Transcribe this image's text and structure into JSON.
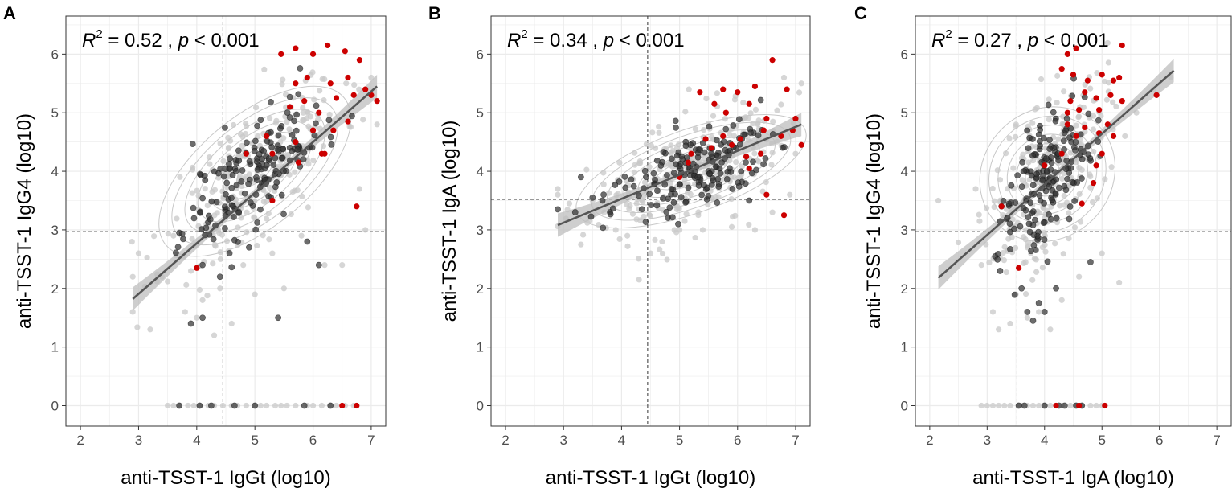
{
  "colors": {
    "grey_point": "#c8c8c8",
    "dark_point": "#333333",
    "red_point": "#cc0000",
    "fit_line": "#555555",
    "ci_band": "#bdbdbd",
    "contour": "#c8c8c8",
    "grid": "#ebebeb",
    "border": "#333333"
  },
  "chart_data": [
    {
      "panel": "A",
      "type": "scatter",
      "xlabel": "anti-TSST-1 IgGt (log10)",
      "ylabel": "anti-TSST-1 IgG4 (log10)",
      "xlim": [
        1.75,
        7.25
      ],
      "ylim": [
        -0.35,
        6.65
      ],
      "xticks": [
        2,
        3,
        4,
        5,
        6,
        7
      ],
      "yticks": [
        0,
        1,
        2,
        3,
        4,
        5,
        6
      ],
      "annotation": {
        "r2_label": "R",
        "r2_sup": "2",
        "r2_rest": " = 0.52 , ",
        "p_label": "p",
        "p_rest": " < 0.001"
      },
      "vline": 4.45,
      "hline": 2.97,
      "fit": {
        "x": [
          2.9,
          7.1
        ],
        "y": [
          1.82,
          5.45
        ]
      },
      "cloud": {
        "cx": 5.0,
        "cy": 4.0,
        "sx": 0.75,
        "sy": 0.85,
        "rho": 0.72,
        "n_grey": 260,
        "n_dark": 170,
        "seed": 11
      },
      "grey_points": [
        [
          2.9,
          2.2
        ],
        [
          2.9,
          1.6
        ],
        [
          3.0,
          2.6
        ],
        [
          3.2,
          1.3
        ],
        [
          3.4,
          2.2
        ],
        [
          3.6,
          2.9
        ],
        [
          3.8,
          1.6
        ],
        [
          3.9,
          2.3
        ],
        [
          4.0,
          1.5
        ],
        [
          4.1,
          1.8
        ],
        [
          4.3,
          1.2
        ],
        [
          4.4,
          2.0
        ],
        [
          4.6,
          1.4
        ],
        [
          4.8,
          2.4
        ],
        [
          5.0,
          1.9
        ],
        [
          5.3,
          2.6
        ],
        [
          5.5,
          2.0
        ],
        [
          5.8,
          2.9
        ],
        [
          6.2,
          2.4
        ],
        [
          6.5,
          2.4
        ],
        [
          6.9,
          3.0
        ],
        [
          6.8,
          3.7
        ],
        [
          7.1,
          4.8
        ],
        [
          7.0,
          5.6
        ]
      ],
      "dark_points": [
        [
          3.7,
          2.95
        ],
        [
          4.1,
          2.4
        ],
        [
          4.4,
          2.2
        ],
        [
          4.9,
          2.7
        ],
        [
          5.4,
          1.5
        ],
        [
          5.9,
          2.8
        ],
        [
          6.1,
          2.4
        ],
        [
          3.9,
          1.4
        ],
        [
          4.1,
          1.5
        ]
      ],
      "red_points": [
        [
          5.45,
          6.0
        ],
        [
          5.7,
          6.1
        ],
        [
          6.0,
          6.0
        ],
        [
          6.25,
          6.15
        ],
        [
          6.55,
          6.05
        ],
        [
          6.8,
          5.9
        ],
        [
          5.7,
          5.5
        ],
        [
          5.9,
          5.6
        ],
        [
          6.3,
          5.5
        ],
        [
          6.6,
          5.6
        ],
        [
          6.9,
          5.4
        ],
        [
          5.6,
          5.1
        ],
        [
          5.85,
          5.2
        ],
        [
          6.1,
          5.0
        ],
        [
          6.4,
          5.25
        ],
        [
          6.7,
          5.3
        ],
        [
          7.0,
          5.3
        ],
        [
          7.1,
          5.2
        ],
        [
          5.3,
          4.3
        ],
        [
          5.7,
          4.5
        ],
        [
          6.0,
          4.7
        ],
        [
          6.35,
          4.7
        ],
        [
          6.6,
          4.85
        ],
        [
          4.85,
          4.3
        ],
        [
          5.2,
          4.6
        ],
        [
          5.75,
          4.15
        ],
        [
          6.2,
          4.3
        ],
        [
          6.75,
          3.4
        ],
        [
          4.0,
          2.35
        ],
        [
          5.3,
          3.5
        ],
        [
          6.15,
          4.3
        ]
      ],
      "zero_row": {
        "grey": [
          3.5,
          3.6,
          3.7,
          3.85,
          3.95,
          4.05,
          4.2,
          4.3,
          4.45,
          4.6,
          4.7,
          4.85,
          5.0,
          5.1,
          5.2,
          5.35,
          5.45,
          5.55,
          5.7,
          5.9,
          6.0,
          6.15,
          6.3,
          6.4,
          6.55,
          6.7
        ],
        "dark": [
          3.7,
          4.05,
          4.25,
          4.65,
          5.0,
          5.85,
          6.3
        ],
        "red": [
          6.5,
          6.75
        ]
      }
    },
    {
      "panel": "B",
      "type": "scatter",
      "xlabel": "anti-TSST-1 IgGt (log10)",
      "ylabel": "anti-TSST-1 IgA (log10)",
      "xlim": [
        1.75,
        7.25
      ],
      "ylim": [
        -0.35,
        6.65
      ],
      "xticks": [
        2,
        3,
        4,
        5,
        6,
        7
      ],
      "yticks": [
        0,
        1,
        2,
        3,
        4,
        5,
        6
      ],
      "annotation": {
        "r2_label": "R",
        "r2_sup": "2",
        "r2_rest": " = 0.34 , ",
        "p_label": "p",
        "p_rest": " < 0.001"
      },
      "vline": 4.45,
      "hline": 3.52,
      "fit": {
        "x": [
          2.9,
          7.1
        ],
        "y": [
          3.08,
          4.8
        ]
      },
      "cloud": {
        "cx": 5.2,
        "cy": 4.0,
        "sx": 0.85,
        "sy": 0.55,
        "rho": 0.55,
        "n_grey": 270,
        "n_dark": 170,
        "seed": 23
      },
      "grey_points": [
        [
          2.9,
          3.7
        ],
        [
          2.9,
          3.6
        ],
        [
          3.1,
          3.45
        ],
        [
          3.3,
          2.75
        ],
        [
          3.5,
          3.5
        ],
        [
          3.7,
          3.3
        ],
        [
          3.9,
          3.0
        ],
        [
          4.1,
          2.9
        ],
        [
          4.3,
          2.15
        ],
        [
          4.5,
          2.6
        ],
        [
          4.7,
          2.8
        ],
        [
          5.0,
          3.0
        ],
        [
          5.4,
          3.0
        ],
        [
          5.9,
          3.05
        ],
        [
          6.3,
          3.0
        ],
        [
          6.6,
          3.3
        ],
        [
          6.9,
          3.6
        ],
        [
          7.0,
          4.3
        ],
        [
          7.1,
          5.5
        ],
        [
          6.8,
          5.6
        ]
      ],
      "dark_points": [
        [
          2.9,
          3.35
        ],
        [
          3.3,
          3.9
        ],
        [
          3.5,
          3.55
        ],
        [
          3.8,
          3.3
        ],
        [
          6.2,
          3.5
        ]
      ],
      "red_points": [
        [
          6.6,
          5.9
        ],
        [
          5.35,
          5.35
        ],
        [
          5.75,
          5.4
        ],
        [
          6.0,
          5.35
        ],
        [
          6.3,
          5.45
        ],
        [
          6.85,
          5.4
        ],
        [
          5.6,
          5.15
        ],
        [
          5.8,
          5.0
        ],
        [
          6.2,
          5.15
        ],
        [
          6.5,
          4.9
        ],
        [
          7.0,
          4.9
        ],
        [
          6.95,
          4.7
        ],
        [
          5.45,
          4.55
        ],
        [
          5.75,
          4.6
        ],
        [
          6.05,
          4.55
        ],
        [
          6.45,
          4.7
        ],
        [
          6.75,
          4.6
        ],
        [
          5.2,
          4.3
        ],
        [
          5.55,
          4.4
        ],
        [
          5.9,
          4.45
        ],
        [
          6.15,
          4.25
        ],
        [
          6.4,
          4.3
        ],
        [
          5.15,
          4.15
        ],
        [
          6.2,
          4.05
        ],
        [
          6.5,
          3.6
        ],
        [
          6.8,
          3.25
        ],
        [
          7.1,
          4.45
        ],
        [
          5.0,
          3.9
        ]
      ],
      "zero_row": {
        "grey": [],
        "dark": [],
        "red": []
      }
    },
    {
      "panel": "C",
      "type": "scatter",
      "xlabel": "anti-TSST-1 IgA (log10)",
      "ylabel": "anti-TSST-1 IgG4 (log10)",
      "xlim": [
        1.75,
        7.25
      ],
      "ylim": [
        -0.35,
        6.65
      ],
      "xticks": [
        2,
        3,
        4,
        5,
        6,
        7
      ],
      "yticks": [
        0,
        1,
        2,
        3,
        4,
        5,
        6
      ],
      "annotation": {
        "r2_label": "R",
        "r2_sup": "2",
        "r2_rest": " = 0.27 , ",
        "p_label": "p",
        "p_rest": " < 0.001"
      },
      "vline": 3.52,
      "hline": 2.97,
      "fit": {
        "x": [
          2.15,
          6.25
        ],
        "y": [
          2.18,
          5.72
        ]
      },
      "cloud": {
        "cx": 4.05,
        "cy": 3.95,
        "sx": 0.5,
        "sy": 0.85,
        "rho": 0.55,
        "n_grey": 260,
        "n_dark": 170,
        "seed": 37
      },
      "grey_points": [
        [
          2.15,
          3.5
        ],
        [
          2.8,
          3.7
        ],
        [
          2.9,
          2.4
        ],
        [
          3.1,
          1.6
        ],
        [
          3.2,
          1.3
        ],
        [
          3.4,
          1.4
        ],
        [
          3.5,
          1.9
        ],
        [
          3.7,
          1.5
        ],
        [
          3.9,
          1.6
        ],
        [
          4.1,
          1.3
        ],
        [
          4.3,
          1.8
        ],
        [
          4.6,
          2.2
        ],
        [
          5.0,
          2.6
        ],
        [
          5.3,
          2.1
        ],
        [
          5.9,
          5.4
        ],
        [
          6.2,
          5.6
        ],
        [
          5.6,
          5.0
        ],
        [
          5.4,
          4.6
        ]
      ],
      "dark_points": [
        [
          3.25,
          3.4
        ],
        [
          3.6,
          2.0
        ],
        [
          3.7,
          1.6
        ],
        [
          3.8,
          1.45
        ],
        [
          4.0,
          1.6
        ],
        [
          3.9,
          1.75
        ],
        [
          4.8,
          2.45
        ],
        [
          4.2,
          2.0
        ]
      ],
      "red_points": [
        [
          4.4,
          6.0
        ],
        [
          4.55,
          6.1
        ],
        [
          4.3,
          5.75
        ],
        [
          4.5,
          5.65
        ],
        [
          5.35,
          6.15
        ],
        [
          4.75,
          5.55
        ],
        [
          5.0,
          5.65
        ],
        [
          5.2,
          5.55
        ],
        [
          5.3,
          5.6
        ],
        [
          4.45,
          5.2
        ],
        [
          4.7,
          5.35
        ],
        [
          4.9,
          5.25
        ],
        [
          5.15,
          5.3
        ],
        [
          5.35,
          5.2
        ],
        [
          4.4,
          5.0
        ],
        [
          4.6,
          5.05
        ],
        [
          4.95,
          5.05
        ],
        [
          5.1,
          4.8
        ],
        [
          4.7,
          4.75
        ],
        [
          4.95,
          4.65
        ],
        [
          4.4,
          4.8
        ],
        [
          4.55,
          4.6
        ],
        [
          5.2,
          4.6
        ],
        [
          4.3,
          4.3
        ],
        [
          4.0,
          4.1
        ],
        [
          4.85,
          3.8
        ],
        [
          5.0,
          4.3
        ],
        [
          3.25,
          3.4
        ],
        [
          4.65,
          3.45
        ],
        [
          3.55,
          2.35
        ],
        [
          4.9,
          4.1
        ],
        [
          5.95,
          5.3
        ]
      ],
      "zero_row": {
        "grey": [
          2.9,
          3.0,
          3.1,
          3.2,
          3.3,
          3.4,
          3.55,
          3.6,
          3.7,
          3.8,
          3.9,
          4.0,
          4.1,
          4.2,
          4.3,
          4.45,
          4.55,
          4.65,
          4.8,
          4.9,
          5.0
        ],
        "dark": [
          3.55,
          3.65,
          4.0,
          4.25,
          4.35,
          4.55,
          4.65
        ],
        "red": [
          4.2,
          4.6,
          5.05
        ]
      }
    }
  ]
}
